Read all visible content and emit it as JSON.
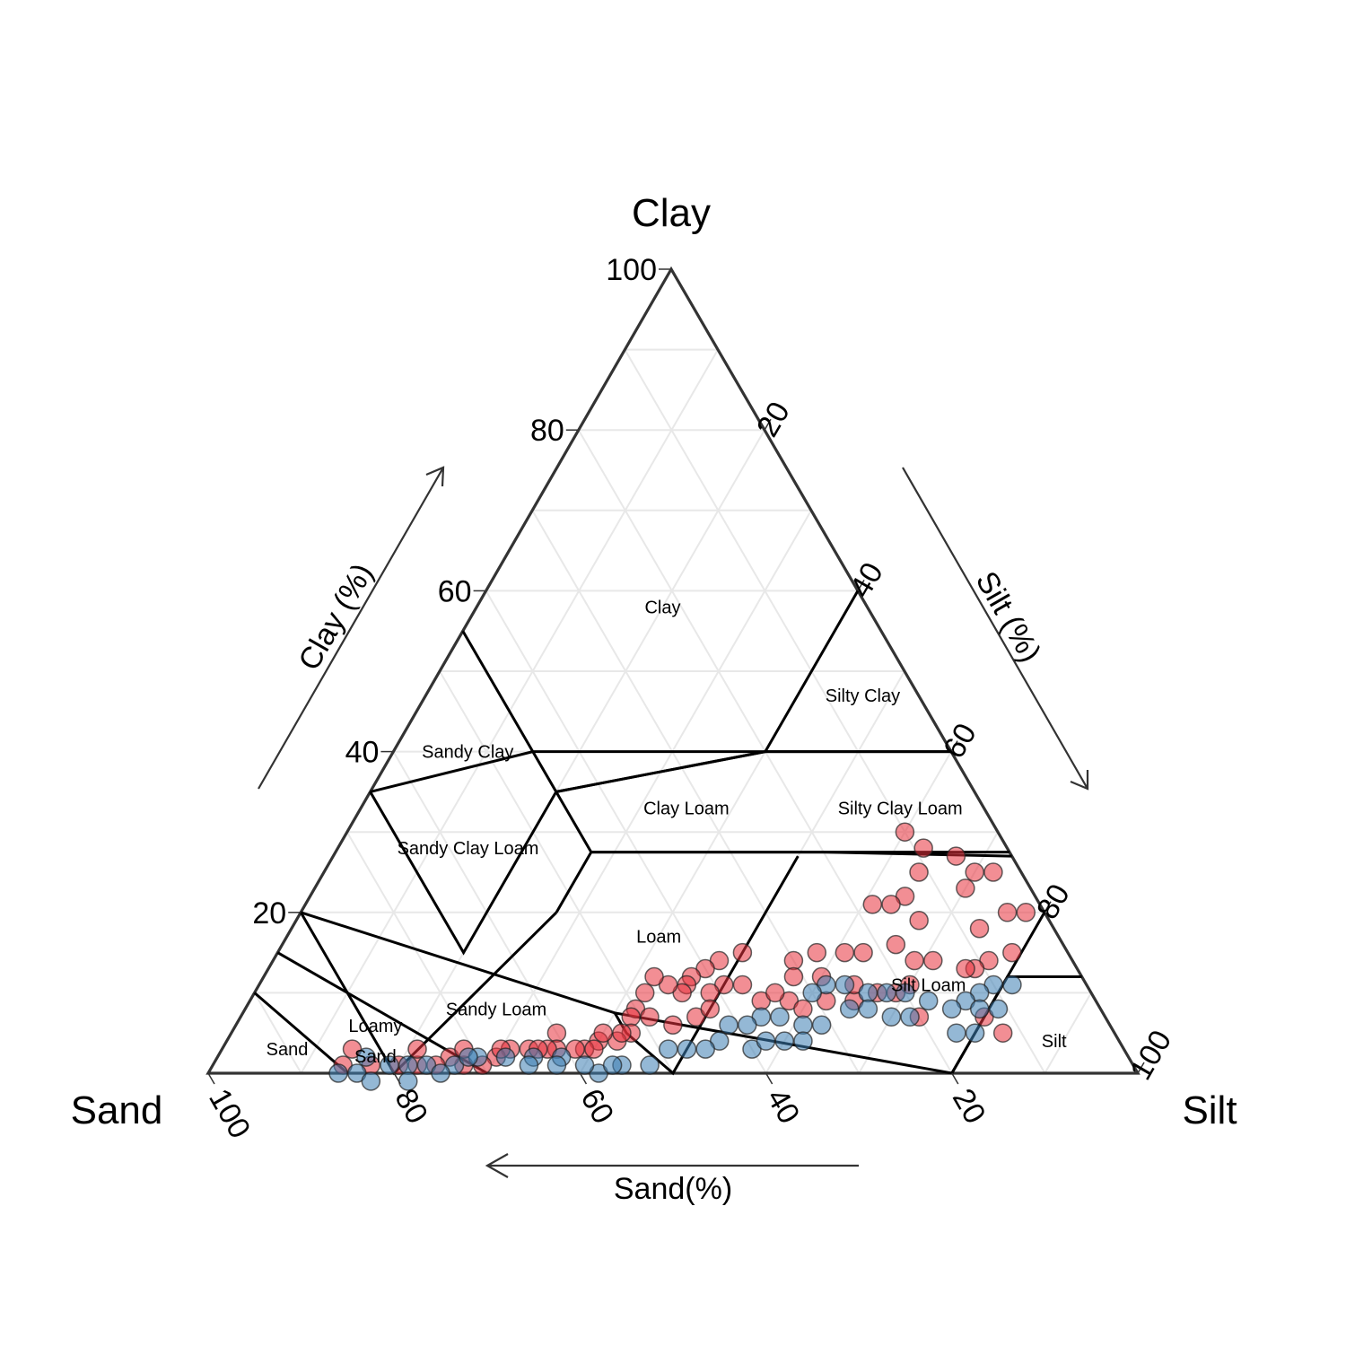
{
  "chart_data": {
    "type": "scatter",
    "subtype": "ternary",
    "axes": {
      "top": {
        "corner_label": "Clay",
        "axis_title": "Clay (%)"
      },
      "left": {
        "corner_label": "Sand",
        "axis_title": "Sand(%)"
      },
      "right": {
        "corner_label": "Silt",
        "axis_title": "Silt (%)"
      }
    },
    "ticks": {
      "clay": [
        "20",
        "40",
        "60",
        "80",
        "100"
      ],
      "sand": [
        "100",
        "80",
        "60",
        "40",
        "20"
      ],
      "silt": [
        "20",
        "40",
        "60",
        "80",
        "100"
      ]
    },
    "range": [
      0,
      100
    ],
    "grid": true,
    "regions": [
      {
        "name": "Clay",
        "label": [
          "Clay"
        ],
        "at": {
          "sand": 22,
          "silt": 20
        }
      },
      {
        "name": "Silty Clay",
        "label": [
          "Silty Clay"
        ],
        "at": {
          "sand": 6,
          "silt": 47
        }
      },
      {
        "name": "Sandy Clay",
        "label": [
          "Sandy Clay"
        ],
        "at": {
          "sand": 52,
          "silt": 8
        }
      },
      {
        "name": "Clay Loam",
        "label": [
          "Clay Loam"
        ],
        "at": {
          "sand": 32,
          "silt": 35
        }
      },
      {
        "name": "Silty Clay Loam",
        "label": [
          "Silty Clay Loam"
        ],
        "at": {
          "sand": 9,
          "silt": 58
        }
      },
      {
        "name": "Sandy Clay Loam",
        "label": [
          "Sandy Clay Loam"
        ],
        "at": {
          "sand": 58,
          "silt": 14
        }
      },
      {
        "name": "Loam",
        "label": [
          "Loam"
        ],
        "at": {
          "sand": 43,
          "silt": 40
        }
      },
      {
        "name": "Sandy Loam",
        "label": [
          "Sandy Loam"
        ],
        "at": {
          "sand": 65,
          "silt": 27
        }
      },
      {
        "name": "Loamy Sand",
        "label": [
          "Loamy",
          "Sand"
        ],
        "at": {
          "sand": 80,
          "silt": 16
        }
      },
      {
        "name": "Sand",
        "label": [
          "Sand"
        ],
        "at": {
          "sand": 90,
          "silt": 7
        }
      },
      {
        "name": "Silt Loam",
        "label": [
          "Silt Loam"
        ],
        "at": {
          "sand": 17,
          "silt": 72
        }
      },
      {
        "name": "Silt",
        "label": [
          "Silt"
        ],
        "at": {
          "sand": 7,
          "silt": 89
        }
      }
    ],
    "boundaries": [
      [
        {
          "sand": 45,
          "silt": 0
        },
        {
          "sand": 45,
          "silt": 15
        },
        {
          "sand": 65,
          "silt": 0
        }
      ],
      [
        {
          "sand": 45,
          "silt": 15
        },
        {
          "sand": 20,
          "silt": 40
        },
        {
          "sand": 0,
          "silt": 60
        }
      ],
      [
        {
          "sand": 0,
          "silt": 40
        },
        {
          "sand": 20,
          "silt": 40
        }
      ],
      [
        {
          "sand": 45,
          "silt": 15
        },
        {
          "sand": 45,
          "silt": 20
        },
        {
          "sand": 20,
          "silt": 40
        }
      ],
      [
        {
          "sand": 20,
          "silt": 40
        },
        {
          "sand": 0,
          "silt": 60
        }
      ],
      [
        {
          "sand": 65,
          "silt": 0
        },
        {
          "sand": 65,
          "silt": 20
        },
        {
          "sand": 45,
          "silt": 20
        },
        {
          "sand": 20,
          "silt": 40
        }
      ],
      [
        {
          "sand": 45,
          "silt": 20
        },
        {
          "sand": 45,
          "silt": 27.5
        },
        {
          "sand": 52.5,
          "silt": 27.5
        }
      ],
      [
        {
          "sand": 45,
          "silt": 27.5
        },
        {
          "sand": 20,
          "silt": 52.5
        },
        {
          "sand": 0,
          "silt": 73
        }
      ],
      [
        {
          "sand": 45,
          "silt": 27.5
        },
        {
          "sand": 0,
          "silt": 72.5
        }
      ],
      [
        {
          "sand": 80,
          "silt": 0
        },
        {
          "sand": 80,
          "silt": 20
        },
        {
          "sand": 52.5,
          "silt": 27.5
        }
      ],
      [
        {
          "sand": 80,
          "silt": 0
        },
        {
          "sand": 52.5,
          "silt": 40
        },
        {
          "sand": 20,
          "silt": 80
        },
        {
          "sand": 0,
          "silt": 80
        }
      ],
      [
        {
          "sand": 52.5,
          "silt": 40
        },
        {
          "sand": 52.5,
          "silt": 42.5
        },
        {
          "sand": 50,
          "silt": 50
        },
        {
          "sand": 23,
          "silt": 50
        }
      ],
      [
        {
          "sand": 85,
          "silt": 0
        },
        {
          "sand": 70,
          "silt": 30
        }
      ],
      [
        {
          "sand": 90,
          "silt": 0
        },
        {
          "sand": 85,
          "silt": 15
        }
      ],
      [
        {
          "sand": 20,
          "silt": 80
        },
        {
          "sand": 8,
          "silt": 80
        },
        {
          "sand": 0,
          "silt": 88
        }
      ]
    ],
    "series": [
      {
        "color": "#e8323c",
        "points": [
          {
            "sand": 10,
            "silt": 60
          },
          {
            "sand": 9,
            "silt": 63
          },
          {
            "sand": 11,
            "silt": 64
          },
          {
            "sand": 6,
            "silt": 67
          },
          {
            "sand": 5,
            "silt": 70
          },
          {
            "sand": 3,
            "silt": 72
          },
          {
            "sand": 7,
            "silt": 70
          },
          {
            "sand": 14,
            "silt": 64
          },
          {
            "sand": 16,
            "silt": 63
          },
          {
            "sand": 18,
            "silt": 61
          },
          {
            "sand": 14,
            "silt": 67
          },
          {
            "sand": 8,
            "silt": 74
          },
          {
            "sand": 9,
            "silt": 77
          },
          {
            "sand": 11,
            "silt": 76
          },
          {
            "sand": 17,
            "silt": 69
          },
          {
            "sand": 18,
            "silt": 66
          },
          {
            "sand": 22,
            "silt": 63
          },
          {
            "sand": 24,
            "silt": 61
          },
          {
            "sand": 27,
            "silt": 58
          },
          {
            "sand": 30,
            "silt": 56
          },
          {
            "sand": 35,
            "silt": 50
          },
          {
            "sand": 38,
            "silt": 48
          },
          {
            "sand": 39,
            "silt": 50
          },
          {
            "sand": 40,
            "silt": 47
          },
          {
            "sand": 42,
            "silt": 46
          },
          {
            "sand": 41,
            "silt": 49
          },
          {
            "sand": 43,
            "silt": 46
          },
          {
            "sand": 44,
            "silt": 46
          },
          {
            "sand": 45,
            "silt": 44
          },
          {
            "sand": 46,
            "silt": 42
          },
          {
            "sand": 48,
            "silt": 42
          },
          {
            "sand": 50,
            "silt": 42
          },
          {
            "sand": 47,
            "silt": 47
          },
          {
            "sand": 49,
            "silt": 44
          },
          {
            "sand": 51,
            "silt": 42
          },
          {
            "sand": 52,
            "silt": 43
          },
          {
            "sand": 54,
            "silt": 42
          },
          {
            "sand": 56,
            "silt": 40
          },
          {
            "sand": 58,
            "silt": 39
          },
          {
            "sand": 59,
            "silt": 38
          },
          {
            "sand": 60,
            "silt": 35
          },
          {
            "sand": 61,
            "silt": 36
          },
          {
            "sand": 62,
            "silt": 35
          },
          {
            "sand": 64,
            "silt": 33
          },
          {
            "sand": 66,
            "silt": 31
          },
          {
            "sand": 68,
            "silt": 30
          },
          {
            "sand": 70,
            "silt": 29
          },
          {
            "sand": 72,
            "silt": 27
          },
          {
            "sand": 73,
            "silt": 25
          },
          {
            "sand": 75,
            "silt": 24
          },
          {
            "sand": 77,
            "silt": 22
          },
          {
            "sand": 79,
            "silt": 20
          },
          {
            "sand": 82,
            "silt": 17
          },
          {
            "sand": 85,
            "silt": 14
          },
          {
            "sand": 83,
            "silt": 14
          },
          {
            "sand": 76,
            "silt": 21
          },
          {
            "sand": 71,
            "silt": 26
          },
          {
            "sand": 67,
            "silt": 30
          },
          {
            "sand": 63,
            "silt": 34
          },
          {
            "sand": 57,
            "silt": 40
          },
          {
            "sand": 55,
            "silt": 40
          },
          {
            "sand": 53,
            "silt": 42
          },
          {
            "sand": 36,
            "silt": 55
          },
          {
            "sand": 33,
            "silt": 58
          },
          {
            "sand": 32,
            "silt": 60
          },
          {
            "sand": 26,
            "silt": 65
          },
          {
            "sand": 23,
            "silt": 67
          },
          {
            "sand": 21,
            "silt": 69
          },
          {
            "sand": 20,
            "silt": 73
          },
          {
            "sand": 13,
            "silt": 80
          },
          {
            "sand": 12,
            "silt": 83
          },
          {
            "sand": 6,
            "silt": 79
          },
          {
            "sand": 4,
            "silt": 76
          },
          {
            "sand": 2,
            "silt": 78
          },
          {
            "sand": 12,
            "silt": 75
          },
          {
            "sand": 31,
            "silt": 57
          },
          {
            "sand": 29,
            "silt": 62
          },
          {
            "sand": 25,
            "silt": 64
          },
          {
            "sand": 28,
            "silt": 60
          },
          {
            "sand": 37,
            "silt": 52
          },
          {
            "sand": 44,
            "silt": 49
          },
          {
            "sand": 34,
            "silt": 56
          },
          {
            "sand": 42,
            "silt": 50
          },
          {
            "sand": 15,
            "silt": 71
          },
          {
            "sand": 19,
            "silt": 70
          }
        ]
      },
      {
        "color": "#3d7db3",
        "points": [
          {
            "sand": 8,
            "silt": 81
          },
          {
            "sand": 10,
            "silt": 79
          },
          {
            "sand": 12,
            "silt": 78
          },
          {
            "sand": 14,
            "silt": 77
          },
          {
            "sand": 16,
            "silt": 76
          },
          {
            "sand": 18,
            "silt": 73
          },
          {
            "sand": 20,
            "silt": 70
          },
          {
            "sand": 22,
            "silt": 68
          },
          {
            "sand": 24,
            "silt": 66
          },
          {
            "sand": 26,
            "silt": 63
          },
          {
            "sand": 28,
            "silt": 61
          },
          {
            "sand": 30,
            "silt": 60
          },
          {
            "sand": 31,
            "silt": 63
          },
          {
            "sand": 33,
            "silt": 61
          },
          {
            "sand": 35,
            "silt": 58
          },
          {
            "sand": 37,
            "silt": 56
          },
          {
            "sand": 39,
            "silt": 55
          },
          {
            "sand": 41,
            "silt": 53
          },
          {
            "sand": 43,
            "silt": 53
          },
          {
            "sand": 45,
            "silt": 52
          },
          {
            "sand": 47,
            "silt": 50
          },
          {
            "sand": 49,
            "silt": 48
          },
          {
            "sand": 52,
            "silt": 47
          },
          {
            "sand": 55,
            "silt": 44
          },
          {
            "sand": 58,
            "silt": 42
          },
          {
            "sand": 61,
            "silt": 37
          },
          {
            "sand": 64,
            "silt": 34
          },
          {
            "sand": 67,
            "silt": 31
          },
          {
            "sand": 70,
            "silt": 28
          },
          {
            "sand": 73,
            "silt": 26
          },
          {
            "sand": 76,
            "silt": 23
          },
          {
            "sand": 78,
            "silt": 21
          },
          {
            "sand": 80,
            "silt": 19
          },
          {
            "sand": 82,
            "silt": 16
          },
          {
            "sand": 84,
            "silt": 16
          },
          {
            "sand": 86,
            "silt": 14
          },
          {
            "sand": 83,
            "silt": 18
          },
          {
            "sand": 79,
            "silt": 22
          },
          {
            "sand": 75,
            "silt": 25
          },
          {
            "sand": 71,
            "silt": 27
          },
          {
            "sand": 65,
            "silt": 34
          },
          {
            "sand": 62,
            "silt": 37
          },
          {
            "sand": 59,
            "silt": 40
          },
          {
            "sand": 56,
            "silt": 43
          },
          {
            "sand": 40,
            "silt": 57
          },
          {
            "sand": 38,
            "silt": 58
          },
          {
            "sand": 36,
            "silt": 60
          },
          {
            "sand": 34,
            "silt": 62
          },
          {
            "sand": 27,
            "silt": 65
          },
          {
            "sand": 25,
            "silt": 67
          },
          {
            "sand": 23,
            "silt": 70
          },
          {
            "sand": 21,
            "silt": 72
          },
          {
            "sand": 17,
            "silt": 78
          },
          {
            "sand": 15,
            "silt": 80
          },
          {
            "sand": 11,
            "silt": 81
          },
          {
            "sand": 13,
            "silt": 79
          }
        ]
      }
    ]
  }
}
